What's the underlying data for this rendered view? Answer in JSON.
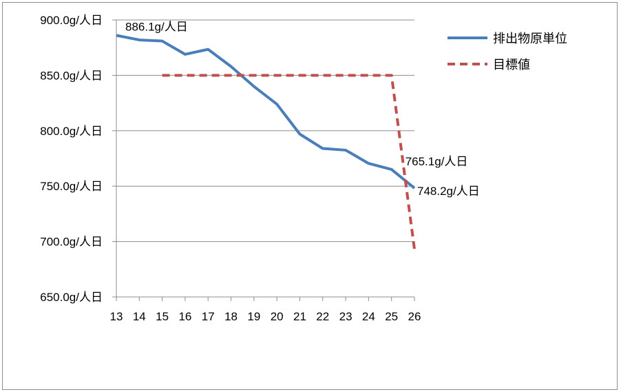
{
  "chart_data": {
    "type": "line",
    "categories": [
      "13",
      "14",
      "15",
      "16",
      "17",
      "18",
      "19",
      "20",
      "21",
      "22",
      "23",
      "24",
      "25",
      "26"
    ],
    "series": [
      {
        "name": "排出物原単位",
        "color": "#4a7ebb",
        "style": "solid",
        "values": [
          886.1,
          882.0,
          881.0,
          869.0,
          873.5,
          858.0,
          840.0,
          824.0,
          797.0,
          784.0,
          782.5,
          770.5,
          765.1,
          748.2
        ]
      },
      {
        "name": "目標値",
        "color": "#c0504d",
        "style": "dashed",
        "values": [
          null,
          null,
          850.0,
          850.0,
          850.0,
          850.0,
          850.0,
          850.0,
          850.0,
          850.0,
          850.0,
          850.0,
          850.0,
          693.0
        ]
      }
    ],
    "ylim": [
      650,
      900
    ],
    "yticks": [
      "900.0g/人日",
      "850.0g/人日",
      "800.0g/人日",
      "750.0g/人日",
      "700.0g/人日",
      "650.0g/人日"
    ],
    "grid": true,
    "legend_position": "top-right",
    "annotations": [
      {
        "text": "886.1g/人日",
        "x": "13",
        "y": 886.1
      },
      {
        "text": "765.1g/人日",
        "x": "25",
        "y": 765.1
      },
      {
        "text": "748.2g/人日",
        "x": "26",
        "y": 748.2
      }
    ]
  }
}
